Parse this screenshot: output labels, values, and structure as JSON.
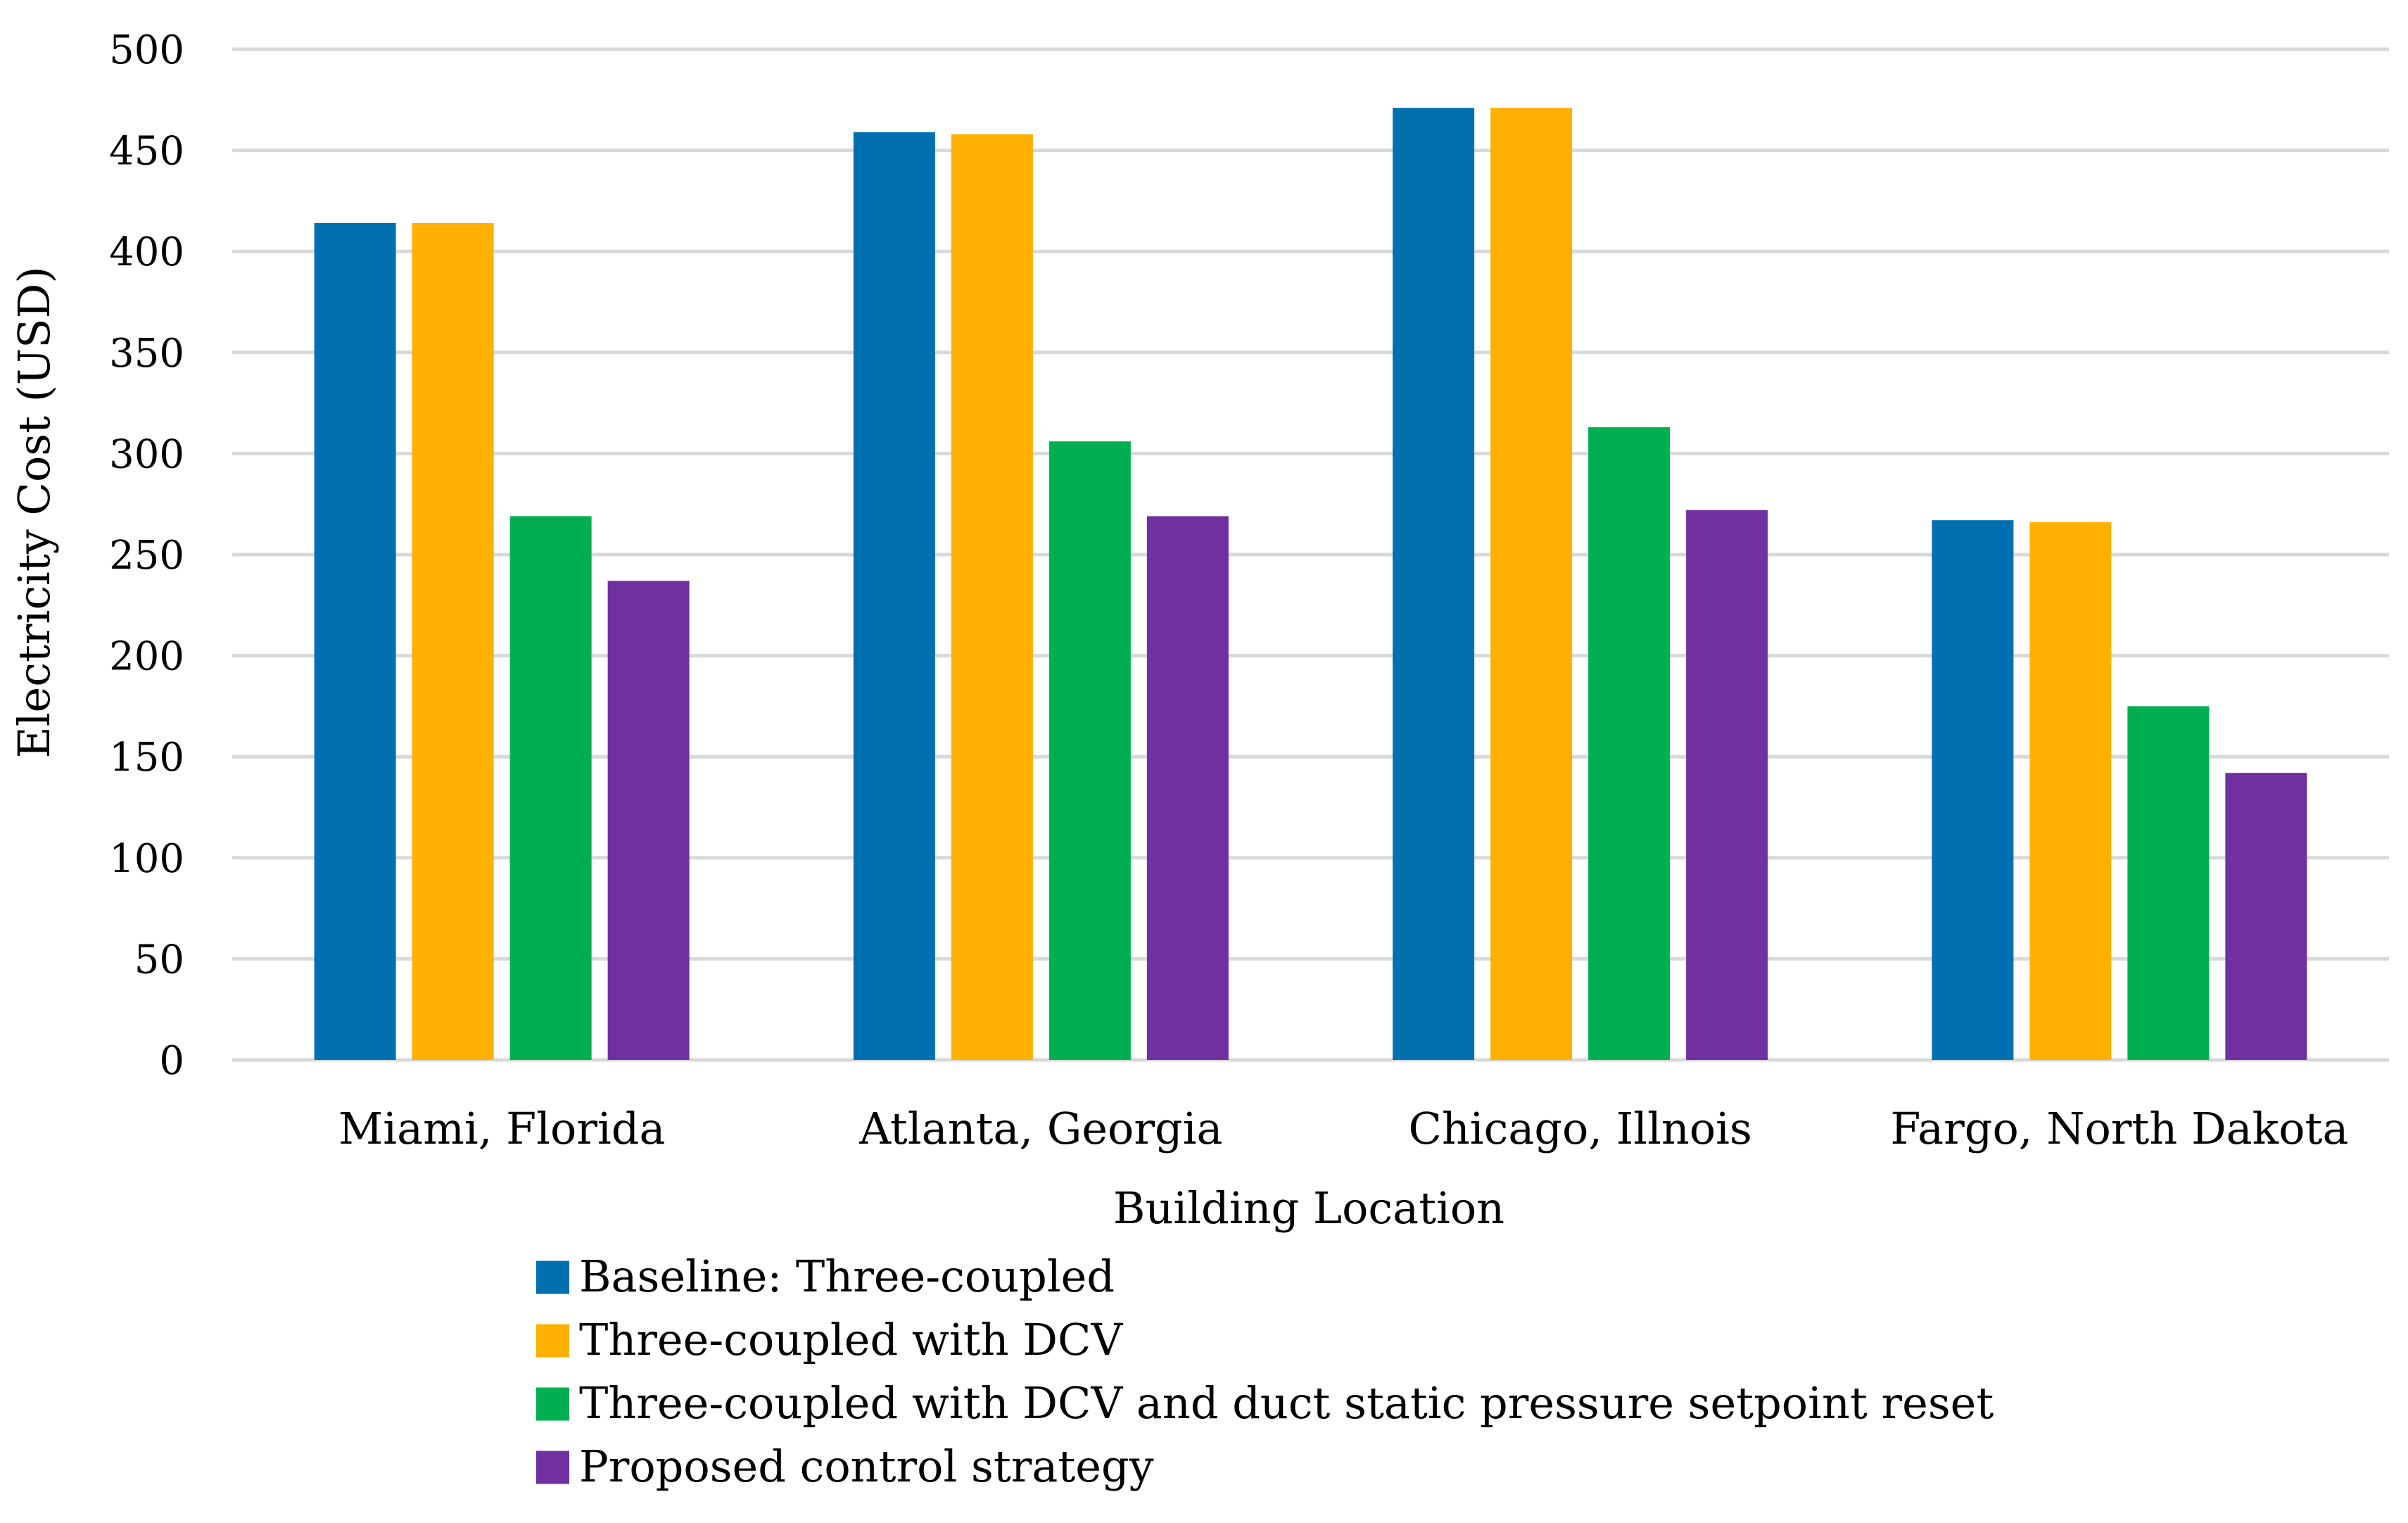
{
  "chart_data": {
    "type": "bar",
    "title": "",
    "xlabel": "Building Location",
    "ylabel": "Electricity Cost (USD)",
    "ylim": [
      0,
      500
    ],
    "yticks": [
      0,
      50,
      100,
      150,
      200,
      250,
      300,
      350,
      400,
      450,
      500
    ],
    "grid": true,
    "legend_position": "bottom",
    "categories": [
      "Miami, Florida",
      "Atlanta, Georgia",
      "Chicago, Illnois",
      "Fargo, North Dakota"
    ],
    "series": [
      {
        "name": "Baseline: Three-coupled",
        "color": "#0070b0",
        "values": [
          414,
          459,
          471,
          267
        ]
      },
      {
        "name": "Three-coupled with DCV",
        "color": "#ffb000",
        "values": [
          414,
          458,
          471,
          266
        ]
      },
      {
        "name": "Three-coupled with DCV and duct static pressure setpoint reset",
        "color": "#00b050",
        "values": [
          269,
          306,
          313,
          175
        ]
      },
      {
        "name": "Proposed control strategy",
        "color": "#7030a0",
        "values": [
          237,
          269,
          272,
          142
        ]
      }
    ]
  }
}
